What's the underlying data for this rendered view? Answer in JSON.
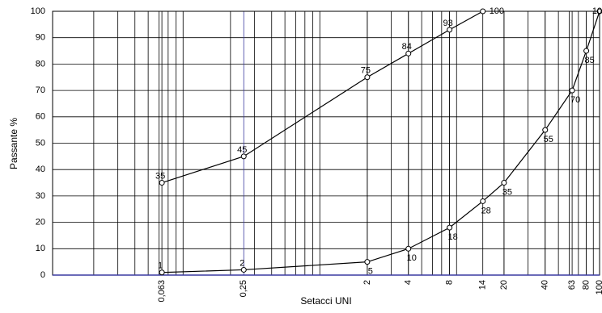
{
  "chart_data": {
    "type": "line",
    "x_label": "Setacci UNI",
    "y_label": "Passante %",
    "xscale": "log",
    "xlim": [
      0.01,
      100
    ],
    "ylim": [
      0,
      100
    ],
    "yticks": [
      0,
      10,
      20,
      30,
      40,
      50,
      60,
      70,
      80,
      90,
      100
    ],
    "xticks": [
      {
        "value": 0.063,
        "label": "0,063"
      },
      {
        "value": 0.25,
        "label": "0,25"
      },
      2,
      4,
      8,
      14,
      20,
      40,
      63,
      80,
      100
    ],
    "grid": true,
    "series": [
      {
        "color": "#000000",
        "x": [
          0.063,
          0.25,
          2,
          4,
          8,
          14
        ],
        "values": [
          35,
          45,
          75,
          84,
          93,
          100
        ]
      },
      {
        "color": "#000000",
        "x": [
          0.063,
          0.25,
          2,
          4,
          8,
          14,
          20,
          40,
          63,
          80,
          100
        ],
        "values": [
          1,
          2,
          5,
          10,
          18,
          28,
          35,
          55,
          70,
          85,
          100
        ]
      }
    ]
  }
}
